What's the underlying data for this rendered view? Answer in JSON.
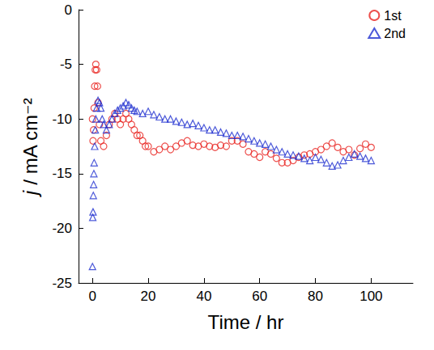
{
  "chart_data": {
    "type": "scatter",
    "xlabel": "Time / hr",
    "ylabel": "j / mA cm⁻²",
    "xlim": [
      -5,
      115
    ],
    "xticks": [
      0,
      20,
      40,
      60,
      80,
      100
    ],
    "ylim": [
      -25,
      0
    ],
    "yticks": [
      -25,
      -20,
      -15,
      -10,
      -5,
      0
    ],
    "grid": false,
    "legend": "upper right",
    "series": [
      {
        "name": "1st",
        "color": "#e8231f",
        "marker": "circle",
        "x": [
          0,
          0.2,
          0.4,
          0.6,
          0.8,
          1,
          1.2,
          1.5,
          1.8,
          2,
          2.5,
          3,
          4,
          5,
          6,
          7,
          8,
          9,
          10,
          11,
          12,
          13,
          14,
          15,
          16,
          17,
          18,
          19,
          20,
          22,
          24,
          26,
          28,
          30,
          32,
          34,
          36,
          38,
          40,
          42,
          44,
          46,
          48,
          50,
          52,
          54,
          56,
          58,
          60,
          62,
          64,
          66,
          68,
          70,
          72,
          74,
          76,
          78,
          80,
          82,
          84,
          86,
          88,
          90,
          92,
          94,
          96,
          98,
          100
        ],
        "values": [
          -10,
          -12,
          -11,
          -9,
          -7,
          -5.5,
          -5,
          -5.5,
          -7,
          -8.5,
          -10.5,
          -12,
          -12.5,
          -11.5,
          -10.5,
          -10,
          -9.5,
          -10,
          -10.5,
          -10,
          -9.5,
          -10,
          -10.5,
          -11,
          -11.5,
          -11.5,
          -12,
          -12.5,
          -12.5,
          -13,
          -12.8,
          -12.5,
          -12.8,
          -12.5,
          -12.2,
          -12,
          -12.4,
          -12.5,
          -12.3,
          -12.5,
          -12.6,
          -12.4,
          -12.5,
          -12,
          -12,
          -12.3,
          -13,
          -13.2,
          -13.5,
          -13,
          -13.2,
          -13.6,
          -14,
          -14,
          -13.8,
          -13.5,
          -13.3,
          -13.2,
          -13,
          -12.8,
          -12.5,
          -12.2,
          -12.6,
          -13,
          -12.8,
          -13.3,
          -12.7,
          -12.3,
          -12.6
        ]
      },
      {
        "name": "2nd",
        "color": "#1f2fd0",
        "marker": "triangle",
        "x": [
          0,
          0.1,
          0.2,
          0.3,
          0.4,
          0.5,
          0.6,
          0.8,
          1,
          1.2,
          1.5,
          2,
          2.5,
          3,
          3.5,
          4,
          5,
          6,
          7,
          8,
          9,
          10,
          11,
          12,
          13,
          14,
          15,
          16,
          18,
          20,
          22,
          24,
          26,
          28,
          30,
          32,
          34,
          36,
          38,
          40,
          42,
          44,
          46,
          48,
          50,
          52,
          54,
          56,
          58,
          60,
          62,
          64,
          66,
          68,
          70,
          72,
          74,
          76,
          78,
          80,
          82,
          84,
          86,
          88,
          90,
          92,
          94,
          96,
          98,
          100
        ],
        "values": [
          -23.5,
          -19,
          -18.5,
          -17,
          -16,
          -15,
          -14,
          -12.5,
          -11,
          -10,
          -9,
          -8.3,
          -8.5,
          -9,
          -10,
          -10.5,
          -11,
          -10.5,
          -10,
          -9.5,
          -9.2,
          -9,
          -8.8,
          -8.5,
          -8.7,
          -9,
          -9.2,
          -9.3,
          -9.5,
          -9.3,
          -9.6,
          -9.8,
          -10,
          -10,
          -10.2,
          -10.3,
          -10.5,
          -10.4,
          -10.6,
          -10.8,
          -11,
          -11,
          -11.2,
          -11.3,
          -11.5,
          -11.5,
          -11.6,
          -11.8,
          -12,
          -12.2,
          -12.3,
          -12.5,
          -12.8,
          -13,
          -13.2,
          -13.3,
          -13.4,
          -13.6,
          -13.8,
          -13.5,
          -13.7,
          -14,
          -14.3,
          -14.2,
          -13.8,
          -13.5,
          -13.2,
          -13.4,
          -13.6,
          -13.8
        ]
      }
    ]
  }
}
